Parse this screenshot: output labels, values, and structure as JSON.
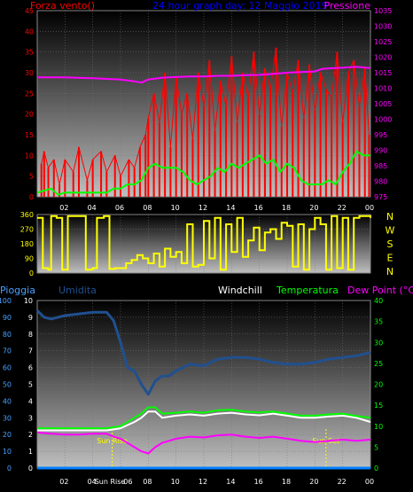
{
  "colors": {
    "wind": "#ff0000",
    "wind_series_2": "#00ff00",
    "pressure": "#ff00ff",
    "direction": "#ffff00",
    "title": "#0000ff",
    "rain": "#0080ff",
    "humidity": "#205090",
    "windchill": "#ffffff",
    "temperature": "#00ff00",
    "dewpoint": "#ff00ff",
    "sun_marker": "#ffff00",
    "axis_labels": "#4aa0ff"
  },
  "chart_data": [
    {
      "type": "line",
      "title": "24 hour graph day: 12 Maggio 2019",
      "left_axis_label": "Forza vento()",
      "right_axis_label": "Pressione",
      "x_tick_labels": [
        "02",
        "04",
        "06",
        "08",
        "10",
        "12",
        "14",
        "16",
        "18",
        "20",
        "22",
        "00"
      ],
      "xlim": [
        0,
        24
      ],
      "ylim_left": [
        0,
        45
      ],
      "ylim_right": [
        975,
        1035
      ],
      "y_ticks_left": [
        0,
        5,
        10,
        15,
        20,
        25,
        30,
        35,
        40,
        45
      ],
      "y_ticks_right": [
        975,
        980,
        985,
        990,
        995,
        1000,
        1005,
        1010,
        1015,
        1020,
        1025,
        1030,
        1035
      ],
      "grid": true,
      "series": [
        {
          "axis": "left",
          "x": [
            0.3,
            0.5,
            0.8,
            1.2,
            1.6,
            2.0,
            2.6,
            3.0,
            3.6,
            4.0,
            4.6,
            5.0,
            5.6,
            6.0,
            6.6,
            7.0,
            7.4,
            7.8,
            8.0,
            8.4,
            8.8,
            9.2,
            9.6,
            10.0,
            10.4,
            10.8,
            11.2,
            11.6,
            12.0,
            12.4,
            12.8,
            13.2,
            13.6,
            14.0,
            14.4,
            14.8,
            15.2,
            15.6,
            16.0,
            16.4,
            16.8,
            17.2,
            17.6,
            18.0,
            18.4,
            18.8,
            19.2,
            19.6,
            20.0,
            20.4,
            20.8,
            21.2,
            21.6,
            22.0,
            22.4,
            22.8,
            23.2,
            23.6,
            23.9
          ],
          "y": [
            8,
            11,
            7,
            9,
            3,
            9,
            6,
            12,
            4,
            9,
            11,
            6,
            10,
            5,
            9,
            7,
            12,
            15,
            19,
            25,
            18,
            30,
            12,
            29,
            20,
            25,
            14,
            30,
            22,
            33,
            16,
            28,
            22,
            34,
            18,
            30,
            24,
            35,
            20,
            31,
            26,
            36,
            17,
            30,
            25,
            33,
            19,
            32,
            21,
            30,
            26,
            24,
            35,
            18,
            30,
            33,
            22,
            31,
            15
          ]
        },
        {
          "axis": "left",
          "x": [
            0,
            1,
            1.5,
            2,
            3,
            4,
            5,
            5.5,
            6,
            6.5,
            7,
            7.5,
            8,
            8.5,
            9,
            10,
            10.5,
            11,
            11.5,
            12,
            12.5,
            13,
            13.5,
            14,
            14.5,
            15,
            15.5,
            16,
            16.5,
            17,
            17.5,
            18,
            18.5,
            19,
            19.5,
            20,
            20.5,
            21,
            21.5,
            22,
            22.5,
            23,
            23.5,
            24
          ],
          "y": [
            1,
            2,
            0.5,
            1,
            1,
            1,
            1,
            2,
            2,
            3,
            3,
            4,
            7,
            8,
            7,
            7,
            6,
            4,
            3,
            4,
            5,
            7,
            6,
            8,
            7,
            8,
            9,
            10,
            8,
            9,
            6,
            8,
            7,
            4,
            3,
            3,
            3,
            4,
            3,
            6,
            8,
            11,
            10,
            10
          ]
        },
        {
          "axis": "right",
          "x": [
            0,
            2,
            4,
            6,
            7,
            7.5,
            8,
            9,
            10,
            11,
            12,
            13,
            14,
            15,
            16,
            17,
            18,
            19,
            20,
            20.5,
            21,
            22,
            23,
            24
          ],
          "y": [
            1013.5,
            1013.5,
            1013.2,
            1012.8,
            1012.2,
            1011.8,
            1012.8,
            1013.4,
            1013.6,
            1013.8,
            1013.8,
            1014.0,
            1014.0,
            1014.2,
            1014.3,
            1014.6,
            1015.0,
            1015.2,
            1015.4,
            1016.2,
            1016.4,
            1016.6,
            1016.9,
            1016.5
          ]
        }
      ]
    },
    {
      "type": "line",
      "right_axis_label": "N W S E N",
      "x_tick_labels": [],
      "xlim": [
        0,
        24
      ],
      "ylim": [
        0,
        360
      ],
      "y_ticks": [
        0,
        90,
        180,
        270,
        360
      ],
      "grid": true,
      "series": [
        {
          "x": [
            0.0,
            0.4,
            0.8,
            1.0,
            1.4,
            1.8,
            2.2,
            2.6,
            3.0,
            3.5,
            4.0,
            4.3,
            4.8,
            5.2,
            5.6,
            6.0,
            6.4,
            6.8,
            7.2,
            7.6,
            8.0,
            8.4,
            8.8,
            9.2,
            9.6,
            10.0,
            10.4,
            10.8,
            11.2,
            11.6,
            12.0,
            12.4,
            12.8,
            13.2,
            13.6,
            14.0,
            14.4,
            14.8,
            15.2,
            15.6,
            16.0,
            16.4,
            16.8,
            17.2,
            17.6,
            18.0,
            18.4,
            18.8,
            19.2,
            19.6,
            20.0,
            20.4,
            20.8,
            21.2,
            21.6,
            22.0,
            22.4,
            22.8,
            23.2,
            23.6,
            24.0
          ],
          "y": [
            340,
            30,
            20,
            350,
            340,
            20,
            350,
            350,
            350,
            20,
            30,
            340,
            350,
            25,
            30,
            30,
            60,
            80,
            110,
            90,
            60,
            120,
            40,
            150,
            100,
            130,
            60,
            300,
            40,
            50,
            320,
            90,
            340,
            20,
            300,
            130,
            340,
            100,
            200,
            280,
            140,
            250,
            270,
            210,
            310,
            290,
            40,
            300,
            20,
            270,
            340,
            300,
            20,
            350,
            30,
            340,
            20,
            340,
            350,
            350,
            340
          ]
        }
      ]
    },
    {
      "type": "line",
      "labels_top": [
        "Pioggia",
        "Umidita",
        "Windchill",
        "Temperatura",
        "Dew Point (°C)"
      ],
      "x_tick_labels": [
        "02",
        "04",
        "Sun Rise",
        "06",
        "08",
        "10",
        "12",
        "14",
        "16",
        "18",
        "20",
        "22",
        "00"
      ],
      "annotations": [
        "Sun Rise",
        "Sun Set"
      ],
      "xlim": [
        0,
        24
      ],
      "ylim_left": [
        0,
        100
      ],
      "ylim_right": [
        0,
        40
      ],
      "y_ticks_left_outer": [
        0,
        10,
        20,
        30,
        40,
        50,
        60,
        70,
        80,
        90,
        100
      ],
      "y_ticks_left_inner": [
        0,
        1,
        2,
        3,
        4,
        5,
        6,
        7,
        8,
        9,
        10
      ],
      "y_ticks_right": [
        0,
        5,
        10,
        15,
        20,
        25,
        30,
        35,
        40
      ],
      "grid": true,
      "series": [
        {
          "name": "Pioggia",
          "axis": "left",
          "x": [
            0,
            24
          ],
          "y": [
            0,
            0
          ]
        },
        {
          "name": "Umidita",
          "axis": "left",
          "x": [
            0,
            0.5,
            1,
            2,
            3,
            4,
            5,
            5.5,
            6,
            6.5,
            7,
            7.5,
            8,
            8.5,
            9,
            9.5,
            10,
            11,
            12,
            13,
            14,
            15,
            16,
            17,
            18,
            19,
            20,
            21,
            22,
            23,
            24
          ],
          "y": [
            94,
            90,
            89,
            91,
            92,
            93,
            93,
            88,
            75,
            60,
            58,
            50,
            44,
            52,
            55,
            55,
            58,
            62,
            61,
            65,
            66,
            66,
            65,
            63,
            62,
            62,
            63,
            65,
            66,
            67,
            69
          ]
        },
        {
          "name": "Windchill",
          "axis": "right",
          "x": [
            0,
            1,
            2,
            3,
            4,
            5,
            6,
            7,
            7.5,
            8,
            8.5,
            9,
            10,
            11,
            12,
            13,
            14,
            15,
            16,
            17,
            18,
            19,
            20,
            21,
            22,
            23,
            24
          ],
          "y": [
            9,
            9,
            9,
            9,
            9,
            9,
            9.5,
            11,
            12,
            13.5,
            13.5,
            12,
            12.5,
            12.8,
            12.5,
            13,
            13.2,
            12.8,
            12.6,
            13,
            12.5,
            12,
            12,
            12.3,
            12.5,
            12,
            11
          ]
        },
        {
          "name": "Temperatura",
          "axis": "right",
          "x": [
            0,
            1,
            2,
            3,
            4,
            5,
            6,
            7,
            7.5,
            8,
            8.5,
            9,
            10,
            11,
            12,
            13,
            14,
            15,
            16,
            17,
            18,
            19,
            20,
            21,
            22,
            23,
            24
          ],
          "y": [
            9.5,
            9.5,
            9.5,
            9.5,
            9.5,
            9.5,
            10,
            12,
            13,
            14.5,
            14.5,
            13,
            13.2,
            13.5,
            13.2,
            13.8,
            13.9,
            13.5,
            13.3,
            13.5,
            13,
            12.5,
            12.5,
            12.8,
            13,
            12.4,
            12
          ]
        },
        {
          "name": "Dew Point (°C)",
          "axis": "right",
          "x": [
            0,
            1,
            2,
            3,
            4,
            5,
            5.5,
            6,
            6.5,
            7,
            7.5,
            8,
            8.5,
            9,
            10,
            11,
            12,
            13,
            14,
            15,
            16,
            17,
            18,
            19,
            20,
            21,
            22,
            23,
            24
          ],
          "y": [
            8.5,
            8.2,
            8,
            8,
            8.2,
            8.2,
            7.5,
            7,
            6,
            5,
            4,
            3.5,
            5,
            6,
            7,
            7.5,
            7.3,
            7.8,
            8,
            7.5,
            7.2,
            7.5,
            7,
            6.5,
            6.2,
            6.5,
            6.8,
            6.5,
            6.8
          ]
        }
      ]
    }
  ]
}
